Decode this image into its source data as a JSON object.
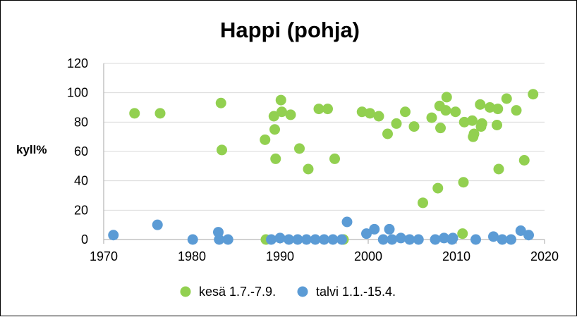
{
  "chart_data": {
    "type": "scatter",
    "title": "Happi (pohja)",
    "ylabel": "kyll%",
    "xlabel": "",
    "xlim": [
      1970,
      2020
    ],
    "ylim": [
      0,
      120
    ],
    "xticks": [
      1970,
      1980,
      1990,
      2000,
      2010,
      2020
    ],
    "yticks": [
      0,
      20,
      40,
      60,
      80,
      100,
      120
    ],
    "grid": "horizontal",
    "legend_position": "bottom",
    "series": [
      {
        "name": "kesä 1.7.-7.9.",
        "color": "#92D050",
        "points": [
          [
            1973.5,
            86
          ],
          [
            1976.4,
            86
          ],
          [
            1983.3,
            93
          ],
          [
            1983.4,
            61
          ],
          [
            1988.3,
            68
          ],
          [
            1988.4,
            0
          ],
          [
            1989.3,
            84
          ],
          [
            1989.4,
            75
          ],
          [
            1989.5,
            55
          ],
          [
            1990.1,
            95
          ],
          [
            1990.2,
            87
          ],
          [
            1991.2,
            85
          ],
          [
            1992.2,
            62
          ],
          [
            1993.2,
            48
          ],
          [
            1994.4,
            89
          ],
          [
            1995.4,
            89
          ],
          [
            1996.2,
            55
          ],
          [
            1997.2,
            0
          ],
          [
            1999.3,
            87
          ],
          [
            2000.2,
            86
          ],
          [
            2001.2,
            84
          ],
          [
            2002.2,
            72
          ],
          [
            2003.2,
            79
          ],
          [
            2004.2,
            87
          ],
          [
            2005.2,
            77
          ],
          [
            2006.2,
            25
          ],
          [
            2007.2,
            83
          ],
          [
            2007.9,
            35
          ],
          [
            2008.1,
            91
          ],
          [
            2008.2,
            76
          ],
          [
            2008.8,
            88
          ],
          [
            2008.9,
            97
          ],
          [
            2009.9,
            87
          ],
          [
            2010.8,
            39
          ],
          [
            2010.9,
            80
          ],
          [
            2010.7,
            4
          ],
          [
            2011.8,
            81
          ],
          [
            2011.9,
            70
          ],
          [
            2012.0,
            72
          ],
          [
            2012.7,
            92
          ],
          [
            2012.8,
            77
          ],
          [
            2012.9,
            79
          ],
          [
            2013.8,
            90
          ],
          [
            2014.7,
            89
          ],
          [
            2014.6,
            78
          ],
          [
            2014.8,
            48
          ],
          [
            2015.7,
            96
          ],
          [
            2016.8,
            88
          ],
          [
            2017.7,
            54
          ],
          [
            2018.7,
            99
          ]
        ]
      },
      {
        "name": "talvi 1.1.-15.4.",
        "color": "#5B9BD5",
        "points": [
          [
            1971.1,
            3
          ],
          [
            1976.1,
            10
          ],
          [
            1980.1,
            0
          ],
          [
            1983.0,
            5
          ],
          [
            1983.1,
            0
          ],
          [
            1984.1,
            0
          ],
          [
            1989.0,
            0
          ],
          [
            1990.0,
            1
          ],
          [
            1991.0,
            0
          ],
          [
            1992.0,
            0
          ],
          [
            1993.0,
            0
          ],
          [
            1994.0,
            0
          ],
          [
            1995.0,
            0
          ],
          [
            1996.0,
            0
          ],
          [
            1997.0,
            0
          ],
          [
            1997.6,
            12
          ],
          [
            1999.8,
            4
          ],
          [
            2000.7,
            7
          ],
          [
            2001.7,
            0
          ],
          [
            2002.4,
            7
          ],
          [
            2002.7,
            0
          ],
          [
            2003.7,
            1
          ],
          [
            2004.7,
            0
          ],
          [
            2005.7,
            0
          ],
          [
            2007.6,
            0
          ],
          [
            2008.6,
            1
          ],
          [
            2009.6,
            1
          ],
          [
            2009.5,
            0
          ],
          [
            2012.2,
            0
          ],
          [
            2014.2,
            2
          ],
          [
            2015.2,
            0
          ],
          [
            2016.2,
            0
          ],
          [
            2017.3,
            6
          ],
          [
            2018.2,
            3
          ]
        ]
      }
    ]
  }
}
